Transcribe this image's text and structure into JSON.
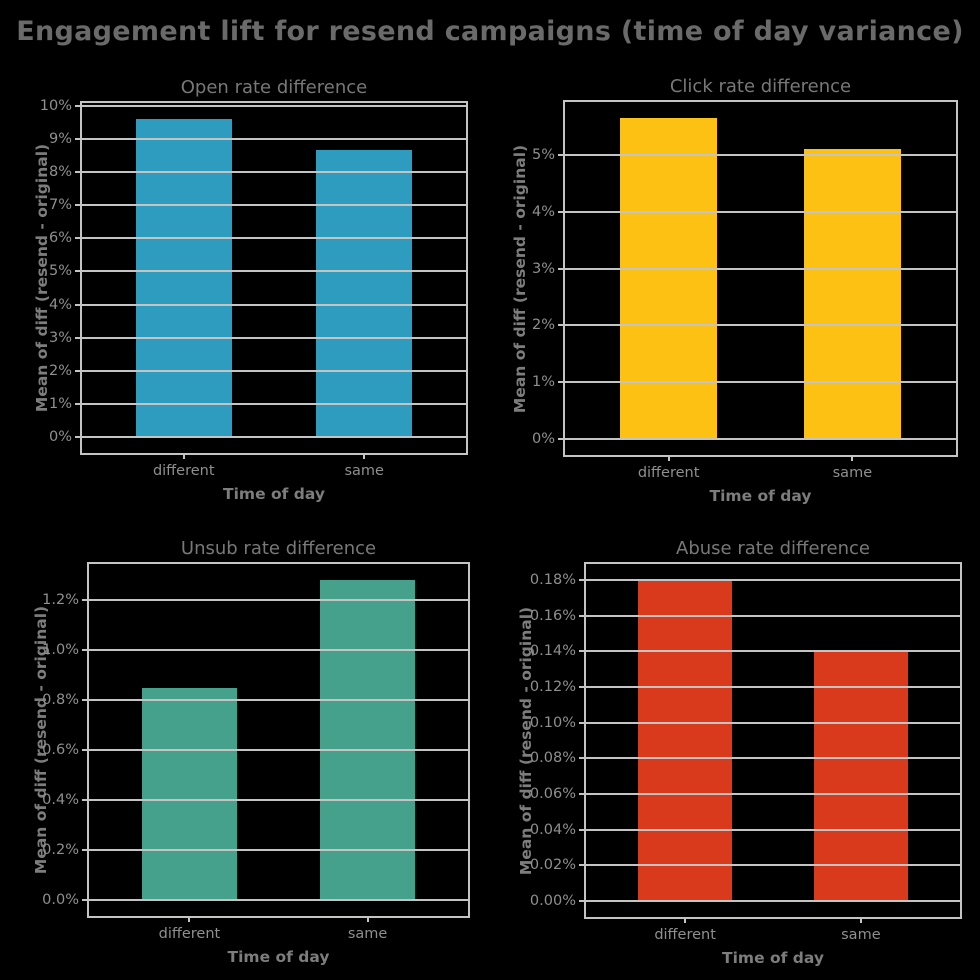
{
  "figure": {
    "title": "Engagement lift for resend campaigns (time of day variance)",
    "background_color": "#000000",
    "text_color": "#7d7d7d",
    "grid_color": "#c4c4c4"
  },
  "chart_data": [
    {
      "type": "bar",
      "title": "Open rate difference",
      "xlabel": "Time of day",
      "ylabel": "Mean of diff (resend - original)",
      "categories": [
        "different",
        "same"
      ],
      "values": [
        9.6,
        8.65
      ],
      "value_unit": "%",
      "color": "#2E9CBE",
      "ylim": [
        -0.48,
        10.08
      ],
      "yticks": [
        0,
        1,
        2,
        3,
        4,
        5,
        6,
        7,
        8,
        9,
        10
      ],
      "ytick_labels": [
        "0%",
        "1%",
        "2%",
        "3%",
        "4%",
        "5%",
        "6%",
        "7%",
        "8%",
        "9%",
        "10%"
      ],
      "grid": true,
      "legend": false
    },
    {
      "type": "bar",
      "title": "Click rate difference",
      "xlabel": "Time of day",
      "ylabel": "Mean of diff (resend - original)",
      "categories": [
        "different",
        "same"
      ],
      "values": [
        5.65,
        5.1
      ],
      "value_unit": "%",
      "color": "#FDC113",
      "ylim": [
        -0.283,
        5.933
      ],
      "yticks": [
        0,
        1,
        2,
        3,
        4,
        5
      ],
      "ytick_labels": [
        "0%",
        "1%",
        "2%",
        "3%",
        "4%",
        "5%"
      ],
      "grid": true,
      "legend": false
    },
    {
      "type": "bar",
      "title": "Unsub rate difference",
      "xlabel": "Time of day",
      "ylabel": "Mean of diff (resend - original)",
      "categories": [
        "different",
        "same"
      ],
      "values": [
        0.85,
        1.28
      ],
      "value_unit": "%",
      "color": "#45A08C",
      "ylim": [
        -0.064,
        1.344
      ],
      "yticks": [
        0,
        0.2,
        0.4,
        0.6,
        0.8,
        1.0,
        1.2
      ],
      "ytick_labels": [
        "0.0%",
        "0.2%",
        "0.4%",
        "0.6%",
        "0.8%",
        "1.0%",
        "1.2%"
      ],
      "grid": true,
      "legend": false
    },
    {
      "type": "bar",
      "title": "Abuse rate difference",
      "xlabel": "Time of day",
      "ylabel": "Mean of diff (resend - original)",
      "categories": [
        "different",
        "same"
      ],
      "values": [
        0.18,
        0.14
      ],
      "value_unit": "%",
      "color": "#D93A1C",
      "ylim": [
        -0.009,
        0.189
      ],
      "yticks": [
        0,
        0.02,
        0.04,
        0.06,
        0.08,
        0.1,
        0.12,
        0.14,
        0.16,
        0.18
      ],
      "ytick_labels": [
        "0.00%",
        "0.02%",
        "0.04%",
        "0.06%",
        "0.08%",
        "0.10%",
        "0.12%",
        "0.14%",
        "0.16%",
        "0.18%"
      ],
      "grid": true,
      "legend": false
    }
  ]
}
